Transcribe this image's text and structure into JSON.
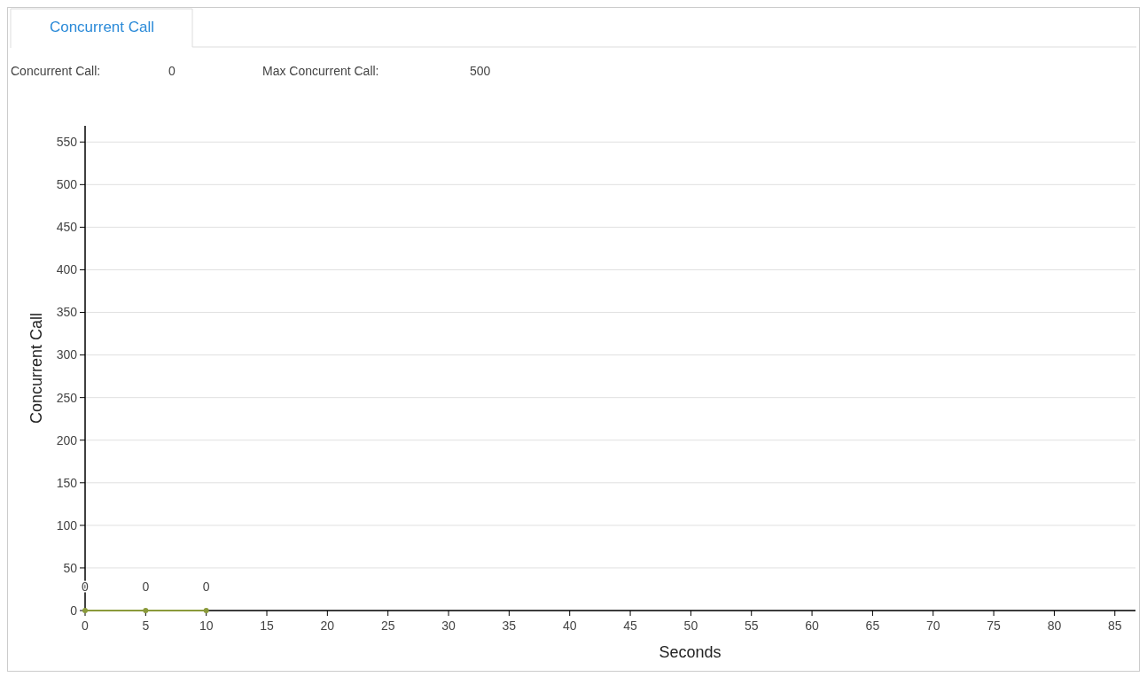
{
  "chart_data": {
    "type": "line",
    "title": "Concurrent Call",
    "annotations": [
      "Concurrent Call:",
      "0",
      "Max Concurrent Call:",
      "500"
    ],
    "xlabel": "Seconds",
    "ylabel": "Concurrent Call",
    "x": [
      0,
      5,
      10
    ],
    "series": [
      {
        "color": "#8a9a3a",
        "values": [
          0,
          0,
          0
        ]
      }
    ],
    "xlim": [
      0,
      86.7
    ],
    "xticks": [
      0,
      5,
      10,
      15,
      20,
      25,
      30,
      35,
      40,
      45,
      50,
      55,
      60,
      65,
      70,
      75,
      80,
      85
    ],
    "ylim": [
      0,
      569
    ],
    "yticks": [
      0,
      50,
      100,
      150,
      200,
      250,
      300,
      350,
      400,
      450,
      500,
      550
    ],
    "grid": "y",
    "marker": "circle",
    "data_labels": true
  }
}
